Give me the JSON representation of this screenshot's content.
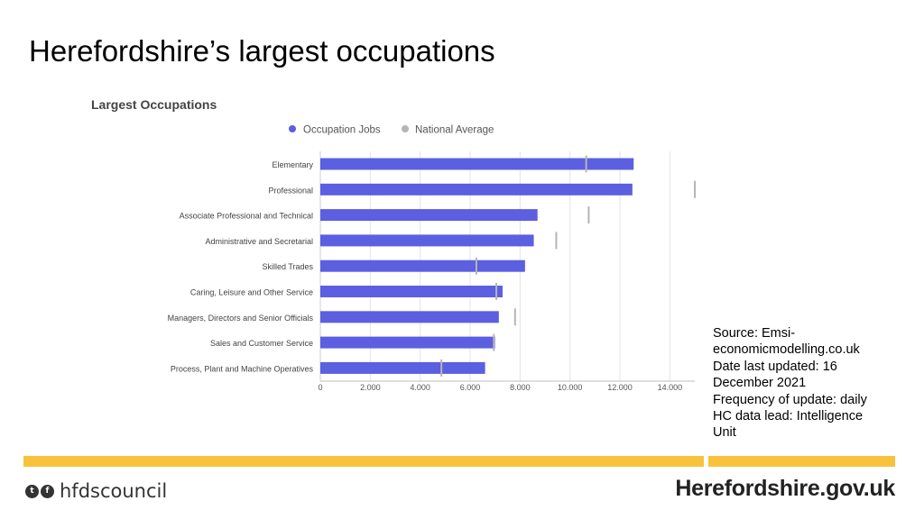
{
  "slide": {
    "title": "Herefordshire’s largest occupations"
  },
  "colors": {
    "bar": "#5b5fe0",
    "marker": "#b5b5b5",
    "grid": "#e3e3e3",
    "band": "#f9c23c"
  },
  "chart_data": {
    "type": "bar",
    "orientation": "horizontal",
    "title": "Largest Occupations",
    "categories": [
      "Elementary",
      "Professional",
      "Associate Professional and Technical",
      "Administrative and Secretarial",
      "Skilled Trades",
      "Caring, Leisure and Other Service",
      "Managers, Directors and Senior Officials",
      "Sales and Customer Service",
      "Process, Plant and Machine Operatives"
    ],
    "series": [
      {
        "name": "Occupation Jobs",
        "values": [
          12550,
          12500,
          8700,
          8550,
          8200,
          7300,
          7150,
          7000,
          6600
        ]
      },
      {
        "name": "National Average",
        "values": [
          10650,
          15000,
          10750,
          9450,
          6250,
          7050,
          7800,
          6950,
          4850
        ]
      }
    ],
    "legend": [
      "Occupation Jobs",
      "National Average"
    ],
    "legend_position": "top",
    "xlim": [
      0,
      15000
    ],
    "xticks": [
      0,
      2000,
      4000,
      6000,
      8000,
      10000,
      12000,
      14000
    ],
    "xtick_labels": [
      "0",
      "2.000",
      "4.000",
      "6.000",
      "8.000",
      "10.000",
      "12.000",
      "14.000"
    ],
    "grid": true
  },
  "source": {
    "line1": "Source: Emsi-",
    "line2": "economicmodelling.co.uk",
    "line3": "Date last updated: 16",
    "line4": "December 2021",
    "line5": "Frequency of update: daily",
    "line6": "HC data lead: Intelligence",
    "line7": "Unit"
  },
  "footer": {
    "twitter_icon": "twitter-icon",
    "facebook_icon": "facebook-icon",
    "handle": "hfdscouncil",
    "logo_text": "Herefordshire.gov.uk"
  }
}
